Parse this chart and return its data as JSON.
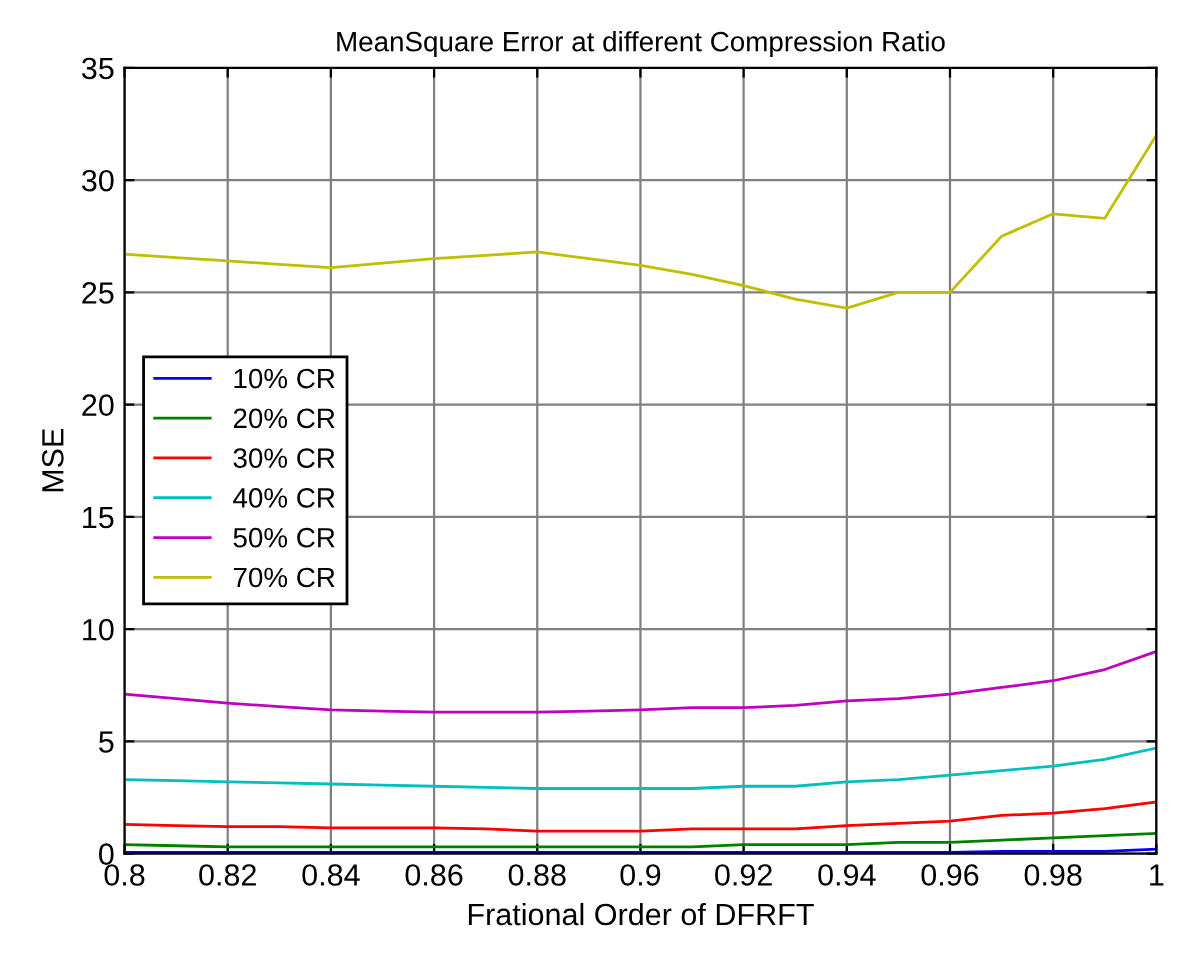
{
  "chart_data": {
    "type": "line",
    "title": "MeanSquare Error at different Compression Ratio",
    "xlabel": "Frational Order of DFRFT",
    "ylabel": "MSE",
    "x": [
      0.8,
      0.81,
      0.82,
      0.83,
      0.84,
      0.85,
      0.86,
      0.87,
      0.88,
      0.89,
      0.9,
      0.91,
      0.92,
      0.93,
      0.94,
      0.95,
      0.96,
      0.97,
      0.98,
      0.99,
      1
    ],
    "series": [
      {
        "name": "10% CR",
        "color": "#0000ff",
        "values": [
          0.05,
          0.05,
          0.05,
          0.05,
          0.05,
          0.05,
          0.05,
          0.05,
          0.05,
          0.05,
          0.05,
          0.05,
          0.05,
          0.05,
          0.05,
          0.05,
          0.05,
          0.1,
          0.1,
          0.1,
          0.2
        ]
      },
      {
        "name": "20% CR",
        "color": "#008000",
        "values": [
          0.4,
          0.35,
          0.3,
          0.3,
          0.3,
          0.3,
          0.3,
          0.3,
          0.3,
          0.3,
          0.3,
          0.3,
          0.4,
          0.4,
          0.4,
          0.5,
          0.5,
          0.6,
          0.7,
          0.8,
          0.9
        ]
      },
      {
        "name": "30% CR",
        "color": "#ff0000",
        "values": [
          1.3,
          1.25,
          1.2,
          1.2,
          1.15,
          1.15,
          1.15,
          1.1,
          1.0,
          1.0,
          1.0,
          1.1,
          1.1,
          1.1,
          1.25,
          1.35,
          1.45,
          1.7,
          1.8,
          2.0,
          2.3
        ]
      },
      {
        "name": "40% CR",
        "color": "#00bfbf",
        "values": [
          3.3,
          3.25,
          3.2,
          3.15,
          3.1,
          3.05,
          3.0,
          2.95,
          2.9,
          2.9,
          2.9,
          2.9,
          3.0,
          3.0,
          3.2,
          3.3,
          3.5,
          3.7,
          3.9,
          4.2,
          4.7
        ]
      },
      {
        "name": "50% CR",
        "color": "#bf00bf",
        "values": [
          7.1,
          6.9,
          6.7,
          6.55,
          6.4,
          6.35,
          6.3,
          6.3,
          6.3,
          6.35,
          6.4,
          6.5,
          6.5,
          6.6,
          6.8,
          6.9,
          7.1,
          7.4,
          7.7,
          8.2,
          9.0
        ]
      },
      {
        "name": "70% CR",
        "color": "#bfbf00",
        "values": [
          26.7,
          26.55,
          26.4,
          26.25,
          26.1,
          26.3,
          26.5,
          26.65,
          26.8,
          26.5,
          26.2,
          25.8,
          25.3,
          24.7,
          24.3,
          25.0,
          25.0,
          27.5,
          28.5,
          28.3,
          32.0
        ]
      }
    ],
    "xlim": [
      0.8,
      1
    ],
    "xticks": [
      {
        "value": 0.8,
        "label": "0.8"
      },
      {
        "value": 0.82,
        "label": "0.82"
      },
      {
        "value": 0.84,
        "label": "0.84"
      },
      {
        "value": 0.86,
        "label": "0.86"
      },
      {
        "value": 0.88,
        "label": "0.88"
      },
      {
        "value": 0.9,
        "label": "0.9"
      },
      {
        "value": 0.92,
        "label": "0.92"
      },
      {
        "value": 0.94,
        "label": "0.94"
      },
      {
        "value": 0.96,
        "label": "0.96"
      },
      {
        "value": 0.98,
        "label": "0.98"
      },
      {
        "value": 1,
        "label": "1"
      }
    ],
    "ylim": [
      0,
      35
    ],
    "yticks": [
      0,
      5,
      10,
      15,
      20,
      25,
      30,
      35
    ],
    "grid": true,
    "legend": "center left"
  }
}
